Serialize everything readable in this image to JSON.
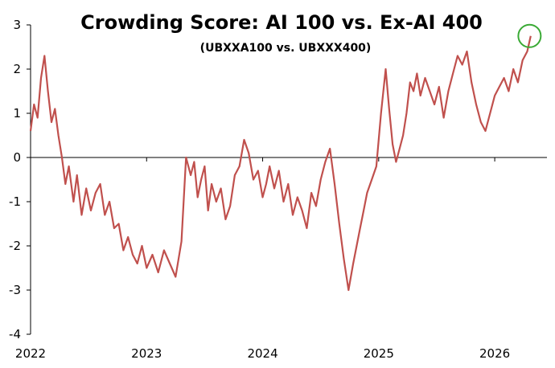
{
  "chart_data": {
    "type": "line",
    "title": "Crowding Score: AI 100 vs. Ex-AI 400",
    "subtitle": "(UBXXA100 vs. UBXXX400)",
    "xlabel": "",
    "ylabel": "",
    "xlim": [
      2022.0,
      2026.45
    ],
    "ylim": [
      -4,
      3
    ],
    "yticks": [
      3,
      2,
      1,
      0,
      -1,
      -2,
      -3,
      -4
    ],
    "ytick_labels": [
      "3",
      "2",
      "1",
      "0",
      "-1",
      "-2",
      "-3",
      "-4"
    ],
    "xticks": [
      2022,
      2023,
      2024,
      2025,
      2026
    ],
    "xtick_labels": [
      "2022",
      "2023",
      "2024",
      "2025",
      "2026"
    ],
    "grid": false,
    "line_color": "#c0504d",
    "annotation": {
      "type": "circle",
      "x": 2026.3,
      "y": 2.75,
      "color": "#3aaa35"
    },
    "series": [
      {
        "name": "Crowding Score",
        "x": [
          2022.0,
          2022.03,
          2022.06,
          2022.09,
          2022.12,
          2022.15,
          2022.18,
          2022.21,
          2022.24,
          2022.27,
          2022.3,
          2022.33,
          2022.37,
          2022.4,
          2022.44,
          2022.48,
          2022.52,
          2022.56,
          2022.6,
          2022.64,
          2022.68,
          2022.72,
          2022.76,
          2022.8,
          2022.84,
          2022.88,
          2022.92,
          2022.96,
          2023.0,
          2023.05,
          2023.1,
          2023.15,
          2023.2,
          2023.25,
          2023.3,
          2023.34,
          2023.38,
          2023.41,
          2023.44,
          2023.47,
          2023.5,
          2023.53,
          2023.56,
          2023.6,
          2023.64,
          2023.68,
          2023.72,
          2023.76,
          2023.8,
          2023.84,
          2023.88,
          2023.92,
          2023.96,
          2024.0,
          2024.03,
          2024.06,
          2024.1,
          2024.14,
          2024.18,
          2024.22,
          2024.26,
          2024.3,
          2024.34,
          2024.38,
          2024.42,
          2024.46,
          2024.5,
          2024.54,
          2024.58,
          2024.62,
          2024.66,
          2024.7,
          2024.74,
          2024.78,
          2024.81,
          2024.84,
          2024.87,
          2024.9,
          2024.94,
          2024.98,
          2025.02,
          2025.06,
          2025.09,
          2025.12,
          2025.15,
          2025.18,
          2025.21,
          2025.24,
          2025.27,
          2025.3,
          2025.33,
          2025.36,
          2025.4,
          2025.44,
          2025.48,
          2025.52,
          2025.56,
          2025.6,
          2025.64,
          2025.68,
          2025.72,
          2025.76,
          2025.8,
          2025.84,
          2025.88,
          2025.92,
          2025.96,
          2026.0,
          2026.04,
          2026.08,
          2026.12,
          2026.16,
          2026.2,
          2026.24,
          2026.28,
          2026.31
        ],
        "values": [
          0.6,
          1.2,
          0.9,
          1.8,
          2.3,
          1.5,
          0.8,
          1.1,
          0.5,
          0.0,
          -0.6,
          -0.2,
          -1.0,
          -0.4,
          -1.3,
          -0.7,
          -1.2,
          -0.8,
          -0.6,
          -1.3,
          -1.0,
          -1.6,
          -1.5,
          -2.1,
          -1.8,
          -2.2,
          -2.4,
          -2.0,
          -2.5,
          -2.2,
          -2.6,
          -2.1,
          -2.4,
          -2.7,
          -1.9,
          0.0,
          -0.4,
          -0.1,
          -0.9,
          -0.5,
          -0.2,
          -1.2,
          -0.6,
          -1.0,
          -0.7,
          -1.4,
          -1.1,
          -0.4,
          -0.2,
          0.4,
          0.1,
          -0.5,
          -0.3,
          -0.9,
          -0.6,
          -0.2,
          -0.7,
          -0.3,
          -1.0,
          -0.6,
          -1.3,
          -0.9,
          -1.2,
          -1.6,
          -0.8,
          -1.1,
          -0.5,
          -0.1,
          0.2,
          -0.6,
          -1.5,
          -2.3,
          -3.0,
          -2.4,
          -2.0,
          -1.6,
          -1.2,
          -0.8,
          -0.5,
          -0.2,
          1.0,
          2.0,
          1.1,
          0.3,
          -0.1,
          0.2,
          0.5,
          1.0,
          1.7,
          1.5,
          1.9,
          1.4,
          1.8,
          1.5,
          1.2,
          1.6,
          0.9,
          1.5,
          1.9,
          2.3,
          2.1,
          2.4,
          1.7,
          1.2,
          0.8,
          0.6,
          1.0,
          1.4,
          1.6,
          1.8,
          1.5,
          2.0,
          1.7,
          2.2,
          2.4,
          2.75
        ]
      }
    ]
  }
}
